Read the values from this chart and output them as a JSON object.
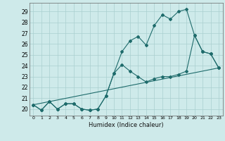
{
  "xlabel": "Humidex (Indice chaleur)",
  "background_color": "#ceeaea",
  "grid_color": "#aacfcf",
  "line_color": "#1e6b6b",
  "xlim": [
    -0.5,
    23.5
  ],
  "ylim": [
    19.4,
    29.8
  ],
  "yticks": [
    20,
    21,
    22,
    23,
    24,
    25,
    26,
    27,
    28,
    29
  ],
  "xticks": [
    0,
    1,
    2,
    3,
    4,
    5,
    6,
    7,
    8,
    9,
    10,
    11,
    12,
    13,
    14,
    15,
    16,
    17,
    18,
    19,
    20,
    21,
    22,
    23
  ],
  "series1_x": [
    0,
    1,
    2,
    3,
    4,
    5,
    6,
    7,
    8,
    9,
    10,
    11,
    12,
    13,
    14,
    15,
    16,
    17,
    18,
    19,
    20,
    21,
    22,
    23
  ],
  "series1_y": [
    20.4,
    19.9,
    20.7,
    20.0,
    20.5,
    20.5,
    20.0,
    19.9,
    20.0,
    21.2,
    23.3,
    25.3,
    26.3,
    26.7,
    25.9,
    27.7,
    28.7,
    28.3,
    29.0,
    29.2,
    26.8,
    25.3,
    25.1,
    23.8
  ],
  "series2_x": [
    0,
    1,
    2,
    3,
    4,
    5,
    6,
    7,
    8,
    9,
    10,
    11,
    12,
    13,
    14,
    15,
    16,
    17,
    18,
    19,
    20,
    21,
    22,
    23
  ],
  "series2_y": [
    20.4,
    19.9,
    20.7,
    20.0,
    20.5,
    20.5,
    20.0,
    19.9,
    20.0,
    21.2,
    23.3,
    24.1,
    23.5,
    23.0,
    22.5,
    22.8,
    23.0,
    23.0,
    23.2,
    23.5,
    26.8,
    25.3,
    25.1,
    23.8
  ],
  "series3_x": [
    0,
    23
  ],
  "series3_y": [
    20.4,
    23.8
  ]
}
